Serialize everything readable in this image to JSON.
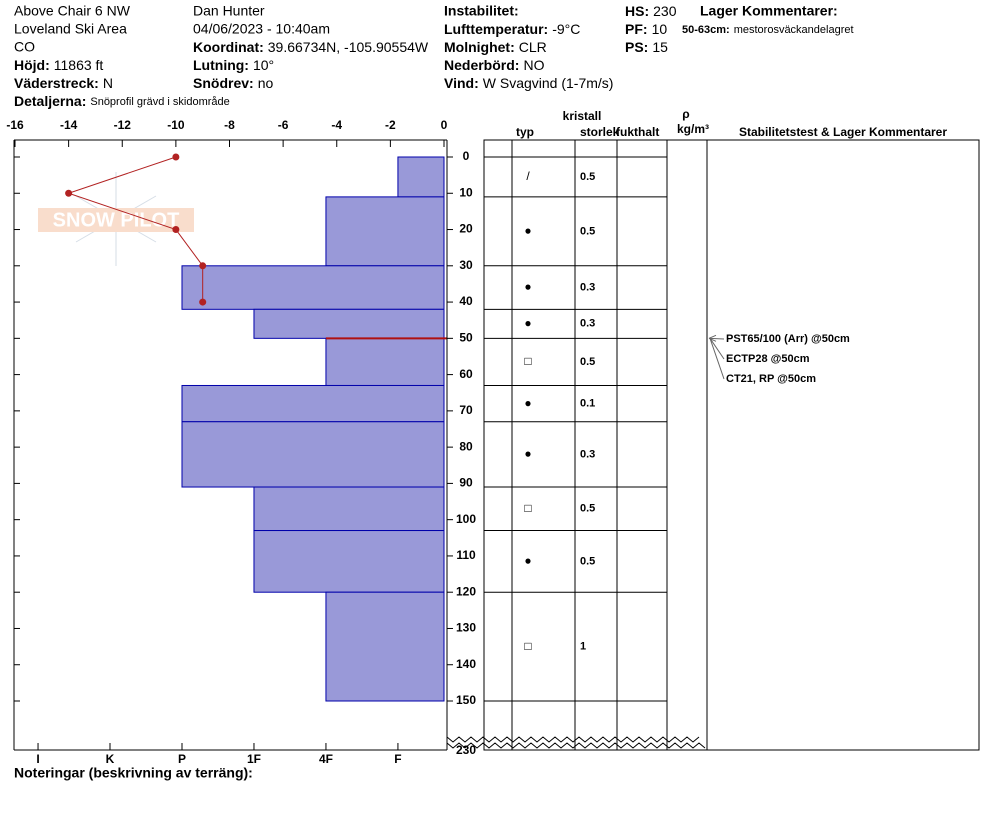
{
  "header": {
    "location": "Above Chair 6 NW",
    "area": "Loveland Ski Area",
    "state": "CO",
    "elevation": {
      "label": "Höjd:",
      "value": "11863 ft"
    },
    "aspect": {
      "label": "Väderstreck:",
      "value": "N"
    },
    "details": {
      "label": "Detaljerna:",
      "value": "Snöprofil grävd i skidområde"
    },
    "observer": "Dan Hunter",
    "datetime": "04/06/2023 - 10:40am",
    "coordinates": {
      "label": "Koordinat:",
      "value": "39.66734N, -105.90554W"
    },
    "slope": {
      "label": "Lutning:",
      "value": "10°"
    },
    "wind_loading": {
      "label": "Snödrev:",
      "value": "no"
    },
    "instability": "Instabilitet:",
    "air_temp": {
      "label": "Lufttemperatur:",
      "value": "-9°C"
    },
    "sky": {
      "label": "Molnighet:",
      "value": "CLR"
    },
    "precip": {
      "label": "Nederbörd:",
      "value": "NO"
    },
    "wind": {
      "label": "Vind:",
      "value": "W Svagvind (1-7m/s)"
    },
    "hs": {
      "label": "HS:",
      "value": "230"
    },
    "pf": {
      "label": "PF:",
      "value": "10"
    },
    "ps": {
      "label": "PS:",
      "value": "15"
    },
    "layer_comments_title": "Lager Kommentarer:",
    "layer_comment": {
      "label": "50-63cm:",
      "value": "mestorosväckandelagret"
    }
  },
  "logo": "SNOW PILOT",
  "chart_data": {
    "type": "snow_profile",
    "xlim": [
      -16,
      0
    ],
    "xticks": [
      -16,
      -14,
      -12,
      -10,
      -8,
      -6,
      -4,
      -2,
      0
    ],
    "ylim": [
      0,
      150
    ],
    "yticks": [
      0,
      10,
      20,
      30,
      40,
      50,
      60,
      70,
      80,
      90,
      100,
      110,
      120,
      130,
      140,
      150
    ],
    "bottom_depth": 230,
    "hardness_lim": [
      6.32,
      0.36
    ],
    "hardness_ticks": [
      {
        "value": 6,
        "label": "I"
      },
      {
        "value": 5,
        "label": "K"
      },
      {
        "value": 4,
        "label": "P"
      },
      {
        "value": 3,
        "label": "1F"
      },
      {
        "value": 2,
        "label": "4F"
      },
      {
        "value": 1,
        "label": "F"
      }
    ],
    "layer_color": "#9999d8",
    "layer_edge": "#0000aa",
    "concern_color": "#b01010",
    "temperature": {
      "color": "#b22222",
      "depths": [
        0,
        10,
        20,
        30,
        40
      ],
      "values": [
        -10,
        -14,
        -10,
        -9,
        -9
      ]
    },
    "layers": [
      {
        "top": 0,
        "bottom": 11,
        "hardness": 1,
        "grain": "/",
        "size": 0.5
      },
      {
        "top": 11,
        "bottom": 30,
        "hardness": 2,
        "grain": "●",
        "size": 0.5
      },
      {
        "top": 30,
        "bottom": 42,
        "hardness": 4,
        "grain": "●",
        "size": 0.3
      },
      {
        "top": 42,
        "bottom": 50,
        "hardness": 3,
        "grain": "●",
        "size": 0.3
      },
      {
        "top": 50,
        "bottom": 63,
        "hardness": 2,
        "grain": "□",
        "size": 0.5,
        "concern": true
      },
      {
        "top": 63,
        "bottom": 73,
        "hardness": 4,
        "grain": "●",
        "size": 0.1
      },
      {
        "top": 73,
        "bottom": 91,
        "hardness": 4,
        "grain": "●",
        "size": 0.3
      },
      {
        "top": 91,
        "bottom": 103,
        "hardness": 3,
        "grain": "□",
        "size": 0.5
      },
      {
        "top": 103,
        "bottom": 120,
        "hardness": 3,
        "grain": "●",
        "size": 0.5
      },
      {
        "top": 120,
        "bottom": 150,
        "hardness": 2,
        "grain": "□",
        "size": 1
      }
    ],
    "tests": [
      {
        "label": "PST65/100 (Arr) @50cm",
        "depth": 50
      },
      {
        "label": "ECTP28 @50cm",
        "depth": 50
      },
      {
        "label": "CT21, RP @50cm",
        "depth": 50
      }
    ],
    "columns": {
      "crystal": "kristall",
      "type": "typ",
      "size": "storlek",
      "moisture": "fukthalt",
      "rho": "ρ",
      "density_unit": "kg/m³",
      "comments": "Stabilitetstest & Lager Kommentarer"
    }
  },
  "notes_label": "Noteringar (beskrivning av terräng):"
}
